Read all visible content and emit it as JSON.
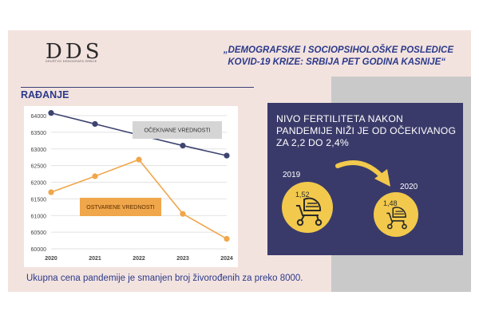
{
  "logo": {
    "letters": "DDS",
    "subtitle": "DRUŠTVO DEMOGRAFA SRBIJE"
  },
  "header": {
    "title_line1": "„DEMOGRAFSKE I SOCIOPSIHOLOŠKE POSLEDICE",
    "title_line2": "KOVID-19 KRIZE: SRBIJA PET GODINA KASNIJE“"
  },
  "section_title": "RAĐANJE",
  "chart_data": {
    "type": "line",
    "title": "",
    "xlabel": "",
    "ylabel": "",
    "categories": [
      "2020",
      "2021",
      "2022",
      "2023",
      "2024"
    ],
    "ylim": [
      60000,
      64000
    ],
    "yticks": [
      "60000",
      "60500",
      "61000",
      "61500",
      "62000",
      "62500",
      "63000",
      "63500",
      "64000"
    ],
    "grid": true,
    "series": [
      {
        "name": "OČEKIVANE VREDNOSTI",
        "values": [
          64080,
          63750,
          63420,
          63100,
          62800
        ],
        "color": "#3d4470",
        "label_bg": "#d5d5d5"
      },
      {
        "name": "OSTVARENE VREDNOSTI",
        "values": [
          61700,
          62180,
          62680,
          61050,
          60300
        ],
        "color": "#f0a64a",
        "label_bg": "#f0a64a"
      }
    ]
  },
  "footer": "Ukupna cena pandemije je smanjen broj živorođenih za preko 8000.",
  "panel": {
    "text": "NIVO FERTILITETA NAKON PANDEMIJE NIŽI JE OD OČEKIVANOG ZA 2,2 DO 2,4%",
    "year1": "2019",
    "value1": "1,52",
    "year2": "2020",
    "value2": "1,48",
    "circle_color": "#f2c94c",
    "arrow_color": "#f2c94c",
    "icon1": "baby-stroller-icon",
    "icon2": "baby-stroller-icon"
  },
  "colors": {
    "background": "#f3e3df",
    "panel": "#3a3a6a",
    "accent_text": "#2b3a8a",
    "gray_block": "#c9c9c9"
  }
}
